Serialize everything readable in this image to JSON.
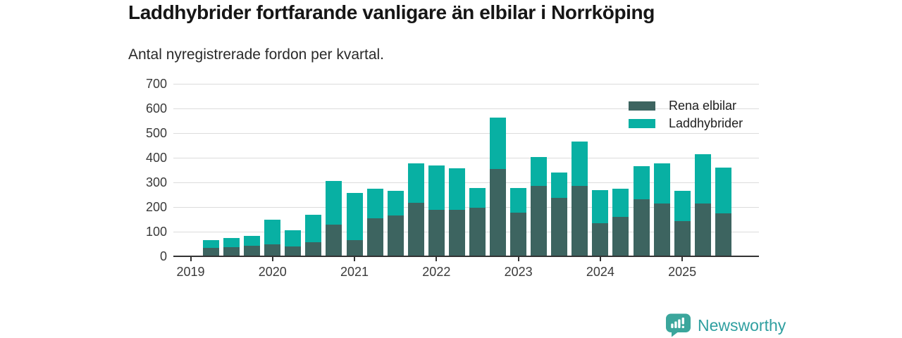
{
  "title": "Laddhybrider fortfarande vanligare än elbilar i Norrköping",
  "subtitle": "Antal nyregistrerade fordon per kvartal.",
  "logo": {
    "text": "Newsworthy",
    "icon": "newsworthy-bubble-chart-icon",
    "icon_color": "#3ba69c",
    "text_color": "#2f9fa0"
  },
  "colors": {
    "rena_elbilar": "#3d6460",
    "laddhybrider": "#08b0a3",
    "grid": "#dcdcdc",
    "axis": "#333333",
    "tick_text": "#3a3a3a",
    "title_text": "#161616"
  },
  "chart_data": {
    "type": "bar",
    "stacked": true,
    "title": "Laddhybrider fortfarande vanligare än elbilar i Norrköping",
    "subtitle": "Antal nyregistrerade fordon per kvartal.",
    "grid": true,
    "legend_position": "top-right",
    "ylim": [
      0,
      700
    ],
    "y_ticks": [
      0,
      100,
      200,
      300,
      400,
      500,
      600,
      700
    ],
    "x_tick_labels": [
      "2019",
      "2020",
      "2021",
      "2022",
      "2023",
      "2024",
      "2025"
    ],
    "first_bar_quarter_offset": 1,
    "categories": [
      "2019 Q2",
      "2019 Q3",
      "2019 Q4",
      "2020 Q1",
      "2020 Q2",
      "2020 Q3",
      "2020 Q4",
      "2021 Q1",
      "2021 Q2",
      "2021 Q3",
      "2021 Q4",
      "2022 Q1",
      "2022 Q2",
      "2022 Q3",
      "2022 Q4",
      "2023 Q1",
      "2023 Q2",
      "2023 Q3",
      "2023 Q4",
      "2024 Q1",
      "2024 Q2",
      "2024 Q3",
      "2024 Q4",
      "2025 Q1",
      "2025 Q2",
      "2025 Q3"
    ],
    "series": [
      {
        "name": "Rena elbilar",
        "color": "#3d6460",
        "values": [
          33,
          38,
          43,
          50,
          39,
          58,
          128,
          67,
          153,
          165,
          217,
          189,
          188,
          198,
          353,
          177,
          286,
          238,
          285,
          135,
          160,
          232,
          214,
          142,
          215,
          173
        ]
      },
      {
        "name": "Laddhybrider",
        "color": "#08b0a3",
        "values": [
          34,
          35,
          41,
          100,
          66,
          110,
          178,
          190,
          122,
          100,
          161,
          180,
          169,
          80,
          209,
          99,
          118,
          101,
          181,
          134,
          113,
          134,
          162,
          124,
          199,
          186
        ]
      }
    ]
  }
}
